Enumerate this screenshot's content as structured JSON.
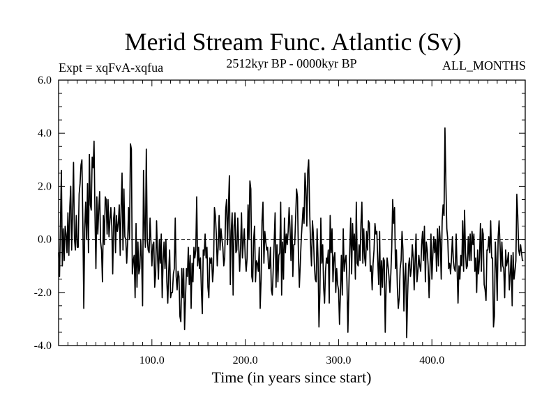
{
  "chart_data": {
    "type": "line",
    "title": "Merid Stream Func. Atlantic (Sv)",
    "subtitle_left": "Expt = xqFvA-xqfua",
    "subtitle_center": "2512kyr BP - 0000kyr BP",
    "subtitle_right": "ALL_MONTHS",
    "xlabel": "Time (in years since start)",
    "ylabel": "",
    "xlim": [
      0,
      500
    ],
    "ylim": [
      -4,
      6
    ],
    "xticks": [
      {
        "value": 100,
        "label": "100.0"
      },
      {
        "value": 200,
        "label": "200.0"
      },
      {
        "value": 300,
        "label": "300.0"
      },
      {
        "value": 400,
        "label": "400.0"
      }
    ],
    "yticks": [
      {
        "value": 6,
        "label": "6.0"
      },
      {
        "value": 4,
        "label": "4.0"
      },
      {
        "value": 2,
        "label": "2.0"
      },
      {
        "value": 0,
        "label": "0.0"
      },
      {
        "value": -2,
        "label": "-2.0"
      },
      {
        "value": -4,
        "label": "-4.0"
      }
    ],
    "reference_line": 0,
    "series": [
      {
        "name": "Merid Stream Func. Atlantic",
        "color": "#000000",
        "x_step": 1,
        "values": [
          -0.5,
          -1.4,
          0.6,
          2.6,
          -1.0,
          0.4,
          -0.8,
          0.5,
          0.2,
          -0.5,
          1.0,
          -0.6,
          1.2,
          2.0,
          -0.4,
          1.0,
          2.9,
          0.0,
          -0.4,
          0.9,
          -0.3,
          -0.3,
          1.7,
          2.1,
          2.8,
          3.0,
          0.6,
          -2.6,
          0.4,
          1.4,
          0.0,
          2.1,
          -0.5,
          3.2,
          1.3,
          1.1,
          3.1,
          2.7,
          3.7,
          0.9,
          -1.1,
          1.6,
          0.2,
          1.1,
          1.8,
          -0.1,
          -0.4,
          -1.6,
          0.9,
          -0.2,
          1.6,
          1.5,
          0.2,
          1.5,
          0.1,
          0.7,
          1.2,
          0.5,
          -1.3,
          0.8,
          1.2,
          -0.5,
          0.9,
          0.3,
          0.6,
          1.3,
          -0.6,
          1.2,
          2.5,
          -0.4,
          1.9,
          0.1,
          0.0,
          -0.9,
          -0.1,
          1.2,
          0.0,
          3.6,
          3.4,
          -1.3,
          -0.8,
          -0.6,
          -2.2,
          0.6,
          -1.8,
          -0.1,
          -1.3,
          -1.1,
          0.0,
          -0.8,
          -2.5,
          2.6,
          0.6,
          -0.3,
          3.4,
          0.0,
          -0.4,
          -0.5,
          0.8,
          -0.1,
          -1.0,
          -0.2,
          -0.1,
          -1.8,
          -1.3,
          0.7,
          -0.6,
          -1.5,
          0.0,
          -0.9,
          0.2,
          -2.2,
          -0.8,
          -0.1,
          -1.1,
          0.0,
          -1.6,
          -2.4,
          -1.2,
          -0.4,
          -2.2,
          -2.0,
          -2.0,
          -1.3,
          -1.1,
          0.8,
          -1.4,
          -1.9,
          -1.2,
          -1.4,
          -2.9,
          -3.1,
          -1.1,
          -2.2,
          -1.1,
          -3.4,
          -2.2,
          -1.1,
          -1.4,
          -0.3,
          -1.7,
          -0.6,
          -2.6,
          -0.9,
          -1.6,
          -0.3,
          -0.7,
          -0.4,
          1.6,
          -1.0,
          -0.3,
          -1.1,
          -0.7,
          -1.9,
          -2.8,
          -0.4,
          -0.6,
          0.2,
          -0.7,
          -0.3,
          -1.8,
          -2.2,
          -0.7,
          -0.9,
          -0.7,
          -1.6,
          -1.1,
          1.2,
          0.9,
          0.2,
          -1.0,
          -0.3,
          0.9,
          -0.4,
          0.4,
          0.0,
          -0.3,
          -1.0,
          -0.7,
          1.1,
          1.5,
          -0.2,
          1.2,
          2.4,
          -1.7,
          0.3,
          1.0,
          -2.1,
          0.5,
          1.0,
          -0.5,
          -0.4,
          0.8,
          -0.2,
          -1.2,
          -0.3,
          1.0,
          -0.7,
          -0.1,
          0.4,
          -0.7,
          -1.2,
          -0.7,
          1.3,
          0.0,
          2.2,
          1.9,
          -1.4,
          -1.6,
          0.0,
          0.5,
          -1.6,
          -0.8,
          -0.9,
          -1.2,
          -0.3,
          -2.6,
          -1.5,
          0.7,
          1.4,
          -0.9,
          0.3,
          -0.1,
          -0.4,
          -0.3,
          -1.1,
          -1.1,
          -0.3,
          -1.9,
          -2.1,
          -1.1,
          -0.1,
          1.0,
          -1.8,
          -0.2,
          -1.6,
          -0.6,
          -0.5,
          1.4,
          -2.1,
          -0.1,
          -1.5,
          0.8,
          -0.5,
          0.2,
          -0.2,
          0.3,
          1.2,
          0.4,
          -0.8,
          0.9,
          -1.4,
          -0.2,
          -0.2,
          0.8,
          1.9,
          1.6,
          -0.6,
          -1.8,
          -0.9,
          0.0,
          0.6,
          1.2,
          0.6,
          2.5,
          1.9,
          0.5,
          2.6,
          3.0,
          1.1,
          -0.2,
          -1.0,
          0.7,
          0.2,
          -0.9,
          -1.5,
          -1.6,
          0.4,
          -0.7,
          -3.3,
          -2.0,
          0.8,
          -0.9,
          -0.2,
          -1.8,
          -2.4,
          -1.2,
          -0.7,
          -0.9,
          -0.4,
          -2.4,
          0.9,
          -0.5,
          0.4,
          -1.6,
          -0.7,
          -0.5,
          -2.0,
          -1.1,
          -1.7,
          -1.9,
          -3.2,
          -2.0,
          -0.6,
          -2.1,
          0.4,
          -1.2,
          -0.8,
          -0.6,
          -1.6,
          -3.5,
          -1.9,
          -0.4,
          0.8,
          -1.3,
          0.6,
          -0.4,
          0.2,
          -1.5,
          1.4,
          -0.9,
          -1.0,
          -0.2,
          -0.8,
          0.6,
          1.4,
          -0.9,
          0.4,
          -0.7,
          -1.0,
          0.3,
          -0.4,
          0.7,
          0.6,
          -1.2,
          -1.0,
          -1.9,
          -0.9,
          -0.4,
          0.6,
          0.2,
          0.3,
          -0.8,
          -1.7,
          0.3,
          -2.1,
          -0.8,
          -1.8,
          -0.7,
          -0.8,
          -3.5,
          -1.7,
          -0.7,
          -1.0,
          -1.4,
          -2.0,
          -1.3,
          -0.3,
          1.5,
          0.6,
          1.2,
          -1.1,
          -0.4,
          -1.8,
          -2.6,
          -2.2,
          -1.1,
          -0.8,
          0.3,
          -0.4,
          -2.7,
          -1.4,
          -0.9,
          -3.7,
          -2.1,
          -1.0,
          -0.7,
          -1.4,
          -1.1,
          -0.2,
          -0.7,
          -1.9,
          -0.8,
          0.2,
          -1.6,
          -1.2,
          -0.6,
          -1.0,
          -1.2,
          -0.2,
          0.3,
          -0.8,
          0.5,
          -1.6,
          -0.1,
          -0.4,
          -1.0,
          -2.2,
          -1.1,
          0.2,
          -1.5,
          -0.6,
          0.1,
          -0.5,
          0.0,
          -1.2,
          0.4,
          -1.0,
          0.5,
          -0.1,
          -1.5,
          0.7,
          1.3,
          0.9,
          4.2,
          2.1,
          0.4,
          0.0,
          -1.1,
          -0.9,
          -1.3,
          -0.7,
          0.1,
          -0.8,
          -1.1,
          -1.2,
          0.2,
          -1.1,
          -2.4,
          -1.0,
          -1.5,
          -0.6,
          -1.0,
          0.7,
          -1.2,
          1.1,
          -0.5,
          -1.1,
          -1.0,
          0.1,
          -0.8,
          0.2,
          -0.8,
          0.3,
          -0.2,
          0.2,
          -1.2,
          -0.7,
          -2.0,
          -0.4,
          -1.3,
          -0.7,
          0.6,
          -1.2,
          0.4,
          0.2,
          -1.7,
          -1.9,
          -2.3,
          -0.4,
          -0.4,
          0.1,
          -0.5,
          0.7,
          -0.7,
          -0.7,
          -3.3,
          -2.9,
          -0.1,
          -1.0,
          -2.3,
          0.1,
          0.7,
          -0.2,
          -1.2,
          -0.1,
          -1.0,
          -1.1,
          -2.2,
          -0.4,
          -1.0,
          -0.8,
          -0.5,
          -1.9,
          -1.3,
          -0.6,
          -2.5,
          -0.5,
          -1.5,
          -1.2,
          -0.8,
          1.7,
          0.9,
          -0.4,
          -0.6,
          -0.2,
          -0.5,
          -0.8,
          -0.8
        ]
      }
    ]
  }
}
